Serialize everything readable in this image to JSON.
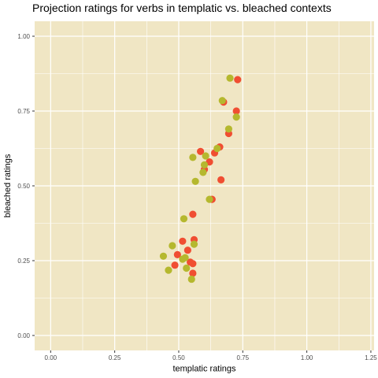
{
  "chart_data": {
    "type": "scatter",
    "title": "Projection ratings for verbs in templatic vs. bleached contexts",
    "xlabel": "templatic ratings",
    "ylabel": "bleached ratings",
    "xlim": [
      -0.0625,
      1.2625
    ],
    "ylim": [
      -0.05,
      1.05
    ],
    "x_ticks": [
      0.0,
      0.25,
      0.5,
      0.75,
      1.0,
      1.25
    ],
    "x_tick_labels": [
      "0.00",
      "0.25",
      "0.50",
      "0.75",
      "1.00",
      "1.25"
    ],
    "y_ticks": [
      0.0,
      0.25,
      0.5,
      0.75,
      1.0
    ],
    "y_tick_labels": [
      "0.00",
      "0.25",
      "0.50",
      "0.75",
      "1.00"
    ],
    "grid": true,
    "legend": "none",
    "colors": {
      "panel_background": "#F0E6C4",
      "grid": "#FFFFFF",
      "series_red": "#F04E32",
      "series_olive": "#B5B82E"
    },
    "series": [
      {
        "color": "#F04E32",
        "points": [
          {
            "x": 0.73,
            "y": 0.855
          },
          {
            "x": 0.725,
            "y": 0.75
          },
          {
            "x": 0.675,
            "y": 0.78
          },
          {
            "x": 0.695,
            "y": 0.675
          },
          {
            "x": 0.66,
            "y": 0.63
          },
          {
            "x": 0.64,
            "y": 0.61
          },
          {
            "x": 0.585,
            "y": 0.615
          },
          {
            "x": 0.62,
            "y": 0.58
          },
          {
            "x": 0.6,
            "y": 0.555
          },
          {
            "x": 0.665,
            "y": 0.52
          },
          {
            "x": 0.63,
            "y": 0.455
          },
          {
            "x": 0.555,
            "y": 0.405
          },
          {
            "x": 0.515,
            "y": 0.315
          },
          {
            "x": 0.56,
            "y": 0.32
          },
          {
            "x": 0.535,
            "y": 0.285
          },
          {
            "x": 0.495,
            "y": 0.27
          },
          {
            "x": 0.545,
            "y": 0.245
          },
          {
            "x": 0.555,
            "y": 0.24
          },
          {
            "x": 0.485,
            "y": 0.235
          },
          {
            "x": 0.555,
            "y": 0.208
          }
        ]
      },
      {
        "color": "#B5B82E",
        "points": [
          {
            "x": 0.7,
            "y": 0.86
          },
          {
            "x": 0.67,
            "y": 0.785
          },
          {
            "x": 0.725,
            "y": 0.73
          },
          {
            "x": 0.695,
            "y": 0.69
          },
          {
            "x": 0.65,
            "y": 0.625
          },
          {
            "x": 0.555,
            "y": 0.595
          },
          {
            "x": 0.605,
            "y": 0.6
          },
          {
            "x": 0.6,
            "y": 0.57
          },
          {
            "x": 0.595,
            "y": 0.545
          },
          {
            "x": 0.565,
            "y": 0.515
          },
          {
            "x": 0.62,
            "y": 0.455
          },
          {
            "x": 0.52,
            "y": 0.39
          },
          {
            "x": 0.56,
            "y": 0.305
          },
          {
            "x": 0.475,
            "y": 0.3
          },
          {
            "x": 0.44,
            "y": 0.265
          },
          {
            "x": 0.515,
            "y": 0.255
          },
          {
            "x": 0.525,
            "y": 0.26
          },
          {
            "x": 0.53,
            "y": 0.225
          },
          {
            "x": 0.46,
            "y": 0.218
          },
          {
            "x": 0.55,
            "y": 0.188
          }
        ]
      }
    ]
  }
}
